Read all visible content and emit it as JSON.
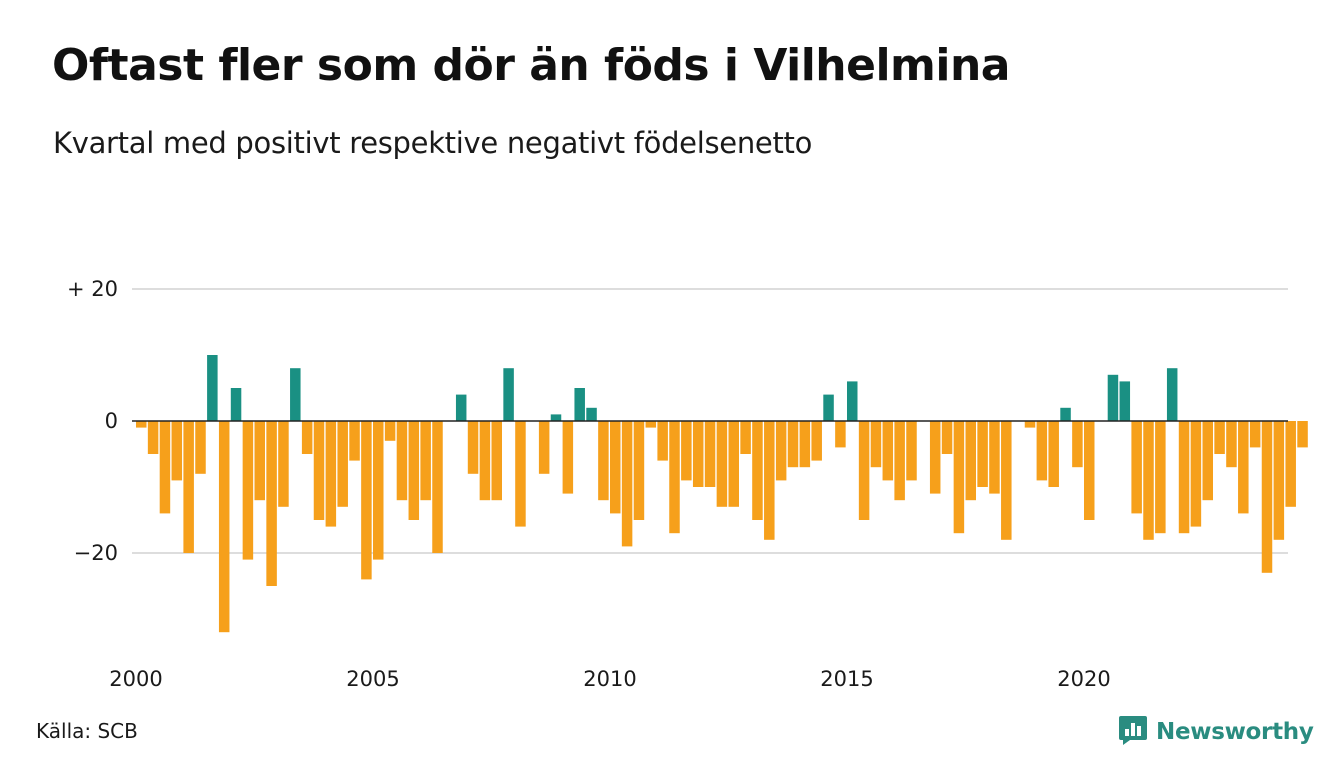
{
  "title": "Oftast fler som dör än föds i Vilhelmina",
  "subtitle": "Kvartal med positivt respektive negativt födelsenetto",
  "source": "Källa: SCB",
  "brand": {
    "name": "Newsworthy",
    "icon": "bar-chart-speech-bubble-icon",
    "color": "#2a8c80"
  },
  "colors": {
    "positive": "#1a9083",
    "negative": "#f6a01b",
    "grid": "#dddddd",
    "zero_line": "#222222"
  },
  "chart_data": {
    "type": "bar",
    "title": "Oftast fler som dör än föds i Vilhelmina",
    "xlabel": "",
    "ylabel": "",
    "x_start": "2000 Q1",
    "x_ticks": [
      2000,
      2005,
      2010,
      2015,
      2020
    ],
    "y_ticks": [
      {
        "value": 20,
        "label": "+ 20"
      },
      {
        "value": 0,
        "label": "0"
      },
      {
        "value": -20,
        "label": "−20"
      }
    ],
    "ylim": [
      -33,
      21
    ],
    "grid": true,
    "values": [
      -1,
      -5,
      -14,
      -9,
      -20,
      -8,
      10,
      -32,
      5,
      -21,
      -12,
      -25,
      -13,
      8,
      -5,
      -15,
      -16,
      -13,
      -6,
      -24,
      -21,
      -3,
      -12,
      -15,
      -12,
      -20,
      0,
      4,
      -8,
      -12,
      -12,
      8,
      -16,
      0,
      -8,
      1,
      -11,
      5,
      2,
      -12,
      -14,
      -19,
      -15,
      -1,
      -6,
      -17,
      -9,
      -10,
      -10,
      -13,
      -13,
      -5,
      -15,
      -18,
      -9,
      -7,
      -7,
      -6,
      4,
      -4,
      6,
      -15,
      -7,
      -9,
      -12,
      -9,
      0,
      -11,
      -5,
      -17,
      -12,
      -10,
      -11,
      -18,
      0,
      -1,
      -9,
      -10,
      2,
      -7,
      -15,
      0,
      7,
      6,
      -14,
      -18,
      -17,
      8,
      -17,
      -16,
      -12,
      -5,
      -7,
      -14,
      -4,
      -23,
      -18,
      -13,
      -4
    ]
  }
}
